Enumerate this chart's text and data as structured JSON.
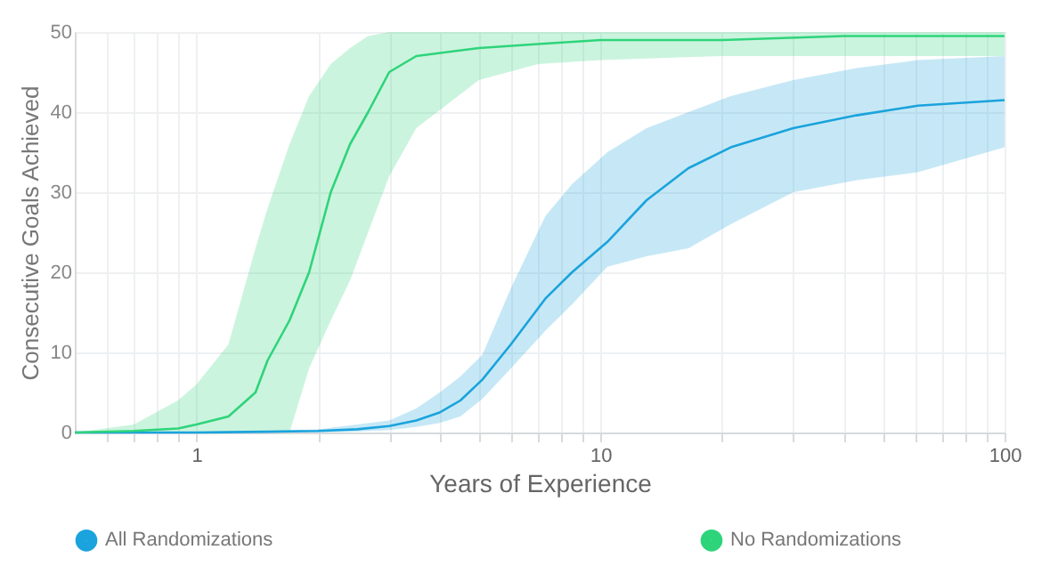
{
  "chart_data": {
    "type": "line",
    "xlabel": "Years of Experience",
    "ylabel": "Consecutive Goals Achieved",
    "log": "x",
    "grid": true,
    "legend": "bottom",
    "marker": "none",
    "line_style": "solid",
    "xlim": [
      0.5,
      100
    ],
    "ylim": [
      0,
      50
    ],
    "yticks": [
      0,
      10,
      20,
      30,
      40,
      50
    ],
    "xticks": [
      {
        "value": 0.6,
        "label": null
      },
      {
        "value": 0.7,
        "label": null
      },
      {
        "value": 0.8,
        "label": null
      },
      {
        "value": 0.9,
        "label": null
      },
      1,
      {
        "value": 2,
        "label": null
      },
      {
        "value": 3,
        "label": null
      },
      {
        "value": 4,
        "label": null
      },
      {
        "value": 5,
        "label": null
      },
      {
        "value": 6,
        "label": null
      },
      {
        "value": 7,
        "label": null
      },
      {
        "value": 8,
        "label": null
      },
      {
        "value": 9,
        "label": null
      },
      10,
      {
        "value": 20,
        "label": null
      },
      {
        "value": 30,
        "label": null
      },
      {
        "value": 40,
        "label": null
      },
      {
        "value": 50,
        "label": null
      },
      {
        "value": 60,
        "label": null
      },
      {
        "value": 70,
        "label": null
      },
      {
        "value": 80,
        "label": null
      },
      {
        "value": 90,
        "label": null
      },
      100
    ],
    "series": [
      {
        "name": "All Randomizations",
        "color": "#1aa3dc",
        "x": [
          0.5,
          1,
          1.5,
          2,
          2.5,
          3,
          3.5,
          4,
          4.5,
          5.1,
          6,
          7.3,
          8.5,
          10.4,
          13,
          16.5,
          21,
          30,
          43,
          61,
          100
        ],
        "values": [
          0,
          0,
          0.1,
          0.2,
          0.4,
          0.8,
          1.5,
          2.5,
          4,
          6.6,
          11,
          16.7,
          20,
          23.8,
          29,
          33,
          35.6,
          38,
          39.6,
          40.8,
          41.5
        ],
        "upper": [
          0,
          0,
          0.2,
          0.4,
          1,
          1.5,
          3,
          5,
          7,
          9.7,
          18,
          27,
          31,
          35,
          38,
          40,
          42,
          44,
          45.5,
          46.5,
          47
        ],
        "lower": [
          0,
          0,
          0,
          0,
          0.1,
          0.3,
          0.7,
          1.2,
          2,
          4.2,
          8,
          12.7,
          16,
          20.7,
          22,
          23,
          26,
          30,
          31.5,
          32.5,
          35.6
        ]
      },
      {
        "name": "No Randomizations",
        "color": "#2ed47a",
        "x": [
          0.5,
          0.7,
          0.9,
          1.0,
          1.2,
          1.4,
          1.5,
          1.7,
          1.9,
          2.15,
          2.4,
          2.66,
          3.0,
          3.5,
          5,
          7,
          10,
          20,
          40,
          100
        ],
        "values": [
          0,
          0.2,
          0.5,
          1,
          2,
          5,
          9,
          14,
          20,
          30,
          36,
          40,
          45,
          47,
          48,
          48.5,
          49,
          49,
          49.5,
          49.5
        ],
        "upper": [
          0,
          1,
          4,
          6,
          11,
          23,
          28,
          36,
          42,
          46,
          48,
          49.5,
          50,
          50,
          50,
          50,
          50,
          50,
          50,
          50
        ],
        "lower": [
          0,
          0,
          0,
          0,
          0,
          0,
          0,
          0,
          8,
          14,
          19,
          25,
          32,
          38,
          44,
          46,
          46.5,
          47,
          47,
          47
        ]
      }
    ]
  }
}
